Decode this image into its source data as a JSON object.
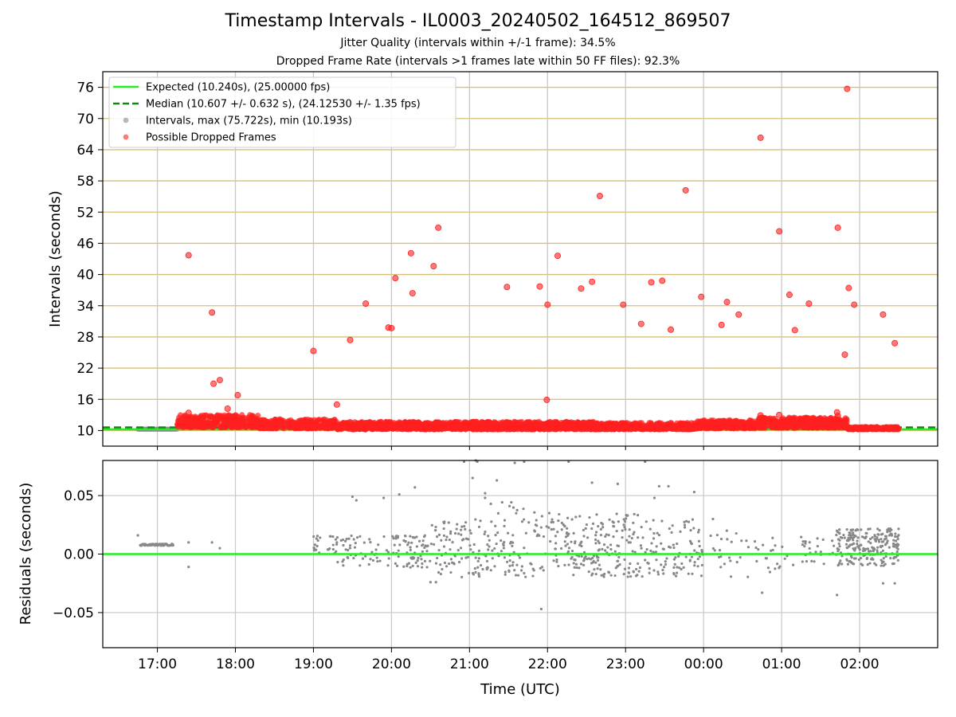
{
  "titles": {
    "main": "Timestamp Intervals - IL0003_20240502_164512_869507",
    "sub1": "Jitter Quality (intervals within +/-1 frame): 34.5%",
    "sub2": "Dropped Frame Rate (intervals >1 frames late within 50 FF files): 92.3%"
  },
  "colors": {
    "expected": "#22ee22",
    "median": "#118811",
    "intervals": "#888888",
    "dropped": "#ff2020",
    "grid_top": "#d4bf7a",
    "grid_bottom": "#c8c8c8"
  },
  "chart_data": [
    {
      "type": "scatter",
      "ylabel": "Intervals (seconds)",
      "xlim": [
        16.3,
        3.0
      ],
      "ylim": [
        7.0,
        79.0
      ],
      "yticks": [
        10,
        16,
        22,
        28,
        34,
        40,
        46,
        52,
        58,
        64,
        70,
        76
      ],
      "grid": true,
      "legend": {
        "placement": "top-left",
        "entries": [
          "Expected (10.240s), (25.00000 fps)",
          "Median (10.607 +/- 0.632 s), (24.12530 +/- 1.35 fps)",
          "Intervals, max (75.722s), min (10.193s)",
          "Possible Dropped Frames"
        ]
      },
      "expected_line": 10.24,
      "median_line": 10.607,
      "dropped_points": [
        [
          17.4,
          43.7
        ],
        [
          17.4,
          13.4
        ],
        [
          17.7,
          32.7
        ],
        [
          17.72,
          19.0
        ],
        [
          17.8,
          19.7
        ],
        [
          17.9,
          14.2
        ],
        [
          18.03,
          16.8
        ],
        [
          19.0,
          25.3
        ],
        [
          19.3,
          15.0
        ],
        [
          19.47,
          27.4
        ],
        [
          19.67,
          34.4
        ],
        [
          19.96,
          29.8
        ],
        [
          20.0,
          29.7
        ],
        [
          20.05,
          39.3
        ],
        [
          20.25,
          44.1
        ],
        [
          20.27,
          36.4
        ],
        [
          20.54,
          41.6
        ],
        [
          20.6,
          49.0
        ],
        [
          21.48,
          37.6
        ],
        [
          21.9,
          37.7
        ],
        [
          22.0,
          34.2
        ],
        [
          21.99,
          15.9
        ],
        [
          22.13,
          43.6
        ],
        [
          22.43,
          37.3
        ],
        [
          22.57,
          38.6
        ],
        [
          22.67,
          55.1
        ],
        [
          22.97,
          34.2
        ],
        [
          23.2,
          30.5
        ],
        [
          23.33,
          38.5
        ],
        [
          23.47,
          38.8
        ],
        [
          23.58,
          29.4
        ],
        [
          23.77,
          56.2
        ],
        [
          23.97,
          35.7
        ],
        [
          0.23,
          30.3
        ],
        [
          0.3,
          34.7
        ],
        [
          0.45,
          32.3
        ],
        [
          0.73,
          66.3
        ],
        [
          0.97,
          48.3
        ],
        [
          1.1,
          36.1
        ],
        [
          1.17,
          29.3
        ],
        [
          1.35,
          34.4
        ],
        [
          1.72,
          49.0
        ],
        [
          1.81,
          24.6
        ],
        [
          1.84,
          75.7
        ],
        [
          1.86,
          37.4
        ],
        [
          1.93,
          34.2
        ],
        [
          2.3,
          32.3
        ],
        [
          2.45,
          26.8
        ],
        [
          1.71,
          13.5
        ],
        [
          1.72,
          12.8
        ],
        [
          0.97,
          13.0
        ],
        [
          0.73,
          12.9
        ]
      ],
      "dropped_bands": [
        {
          "x": [
            17.25,
            18.3
          ],
          "y": [
            10.6,
            13.0
          ]
        },
        {
          "x": [
            18.3,
            19.3
          ],
          "y": [
            10.4,
            12.2
          ]
        },
        {
          "x": [
            19.3,
            22.7
          ],
          "y": [
            10.2,
            11.7
          ]
        },
        {
          "x": [
            22.7,
            23.9
          ],
          "y": [
            10.2,
            11.5
          ]
        },
        {
          "x": [
            23.9,
            0.7
          ],
          "y": [
            10.4,
            12.0
          ]
        },
        {
          "x": [
            0.7,
            1.85
          ],
          "y": [
            10.5,
            12.5
          ]
        },
        {
          "x": [
            1.85,
            2.5
          ],
          "y": [
            10.2,
            10.7
          ]
        }
      ],
      "intervals_band": {
        "x": [
          16.75,
          17.25
        ],
        "y": 10.26
      }
    },
    {
      "type": "scatter",
      "xlabel": "Time (UTC)",
      "ylabel": "Residuals (seconds)",
      "xlim": [
        16.3,
        3.0
      ],
      "ylim": [
        -0.08,
        0.08
      ],
      "yticks": [
        -0.05,
        0.0,
        0.05
      ],
      "ytick_labels": [
        "−0.05",
        "0.00",
        "0.05"
      ],
      "xticks": [
        "17:00",
        "18:00",
        "19:00",
        "20:00",
        "21:00",
        "22:00",
        "23:00",
        "00:00",
        "01:00",
        "02:00"
      ],
      "grid": true,
      "zero_line": 0.0,
      "points_sample": [
        [
          16.75,
          0.016
        ],
        [
          16.8,
          0.008
        ],
        [
          17.0,
          0.008
        ],
        [
          17.2,
          0.008
        ],
        [
          17.4,
          0.01
        ],
        [
          17.4,
          -0.011
        ],
        [
          17.7,
          0.01
        ],
        [
          17.8,
          0.005
        ],
        [
          19.3,
          0.01
        ],
        [
          19.5,
          0.049
        ],
        [
          19.55,
          0.046
        ],
        [
          19.9,
          0.048
        ],
        [
          20.1,
          0.051
        ],
        [
          20.3,
          0.057
        ],
        [
          20.5,
          -0.024
        ],
        [
          20.57,
          -0.024
        ],
        [
          20.93,
          0.079
        ],
        [
          21.04,
          0.065
        ],
        [
          21.08,
          0.08
        ],
        [
          21.1,
          0.079
        ],
        [
          21.2,
          0.052
        ],
        [
          21.2,
          0.048
        ],
        [
          21.35,
          0.063
        ],
        [
          21.58,
          0.078
        ],
        [
          21.7,
          0.079
        ],
        [
          21.92,
          -0.047
        ],
        [
          22.27,
          0.079
        ],
        [
          22.57,
          0.061
        ],
        [
          22.9,
          0.06
        ],
        [
          23.25,
          0.079
        ],
        [
          23.37,
          0.048
        ],
        [
          23.43,
          0.058
        ],
        [
          23.55,
          0.058
        ],
        [
          23.88,
          0.053
        ],
        [
          0.12,
          0.03
        ],
        [
          0.75,
          -0.033
        ],
        [
          1.71,
          -0.035
        ],
        [
          2.3,
          -0.025
        ],
        [
          2.45,
          -0.025
        ]
      ]
    }
  ]
}
